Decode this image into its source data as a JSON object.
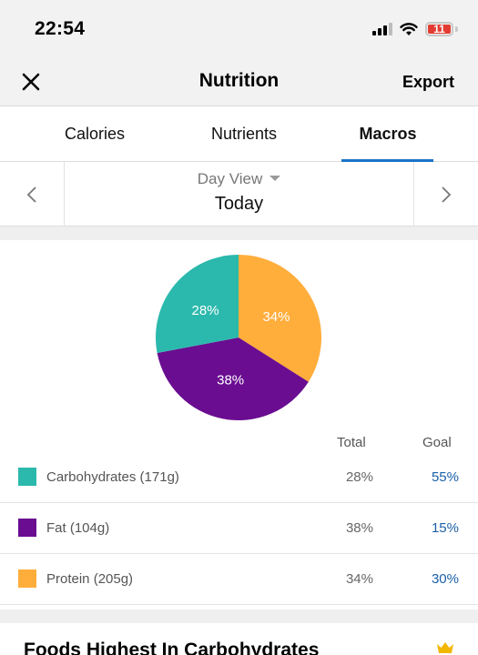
{
  "status_bar": {
    "time": "22:54",
    "battery_level": "11",
    "battery_color": "#e23c32"
  },
  "header": {
    "title": "Nutrition",
    "export_label": "Export",
    "close_icon": "close-icon"
  },
  "tabs": [
    {
      "label": "Calories",
      "active": false
    },
    {
      "label": "Nutrients",
      "active": false
    },
    {
      "label": "Macros",
      "active": true
    }
  ],
  "accent_color": "#1a73c7",
  "day_selector": {
    "view_label": "Day View",
    "value": "Today"
  },
  "table": {
    "total_header": "Total",
    "goal_header": "Goal"
  },
  "macros": [
    {
      "name": "Carbohydrates (171g)",
      "total": "28%",
      "goal": "55%",
      "percent": 28,
      "color": "#2cb9ad"
    },
    {
      "name": "Fat (104g)",
      "total": "38%",
      "goal": "15%",
      "percent": 38,
      "color": "#6a0d91"
    },
    {
      "name": "Protein (205g)",
      "total": "34%",
      "goal": "30%",
      "percent": 34,
      "color": "#ffad3b"
    }
  ],
  "chart_data": {
    "type": "pie",
    "categories": [
      "Carbohydrates",
      "Fat",
      "Protein"
    ],
    "values": [
      28,
      38,
      34
    ],
    "colors": [
      "#2cb9ad",
      "#6a0d91",
      "#ffad3b"
    ],
    "labels": [
      "28%",
      "38%",
      "34%"
    ],
    "title": ""
  },
  "foods_section": {
    "title": "Foods Highest In Carbohydrates",
    "premium_icon": "crown-icon"
  }
}
